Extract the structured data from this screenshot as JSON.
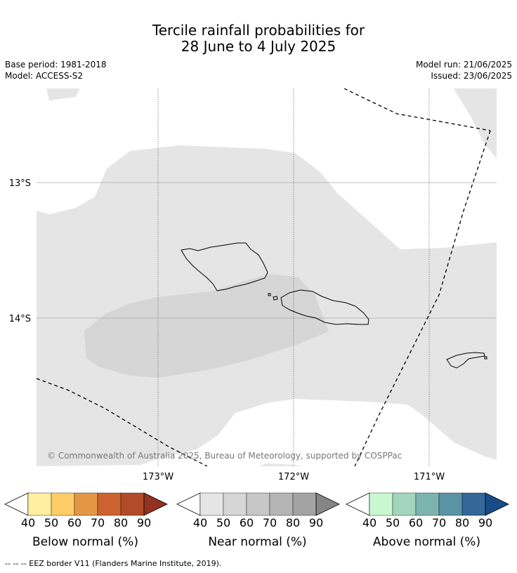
{
  "title_line1": "Tercile rainfall probabilities for",
  "title_line2": "28 June to 4 July 2025",
  "base_period": "Base period: 1981-2018",
  "model": "Model: ACCESS-S2",
  "model_run": "Model run: 21/06/2025",
  "issued": "Issued: 23/06/2025",
  "map": {
    "lat_labels": [
      "13°S",
      "14°S"
    ],
    "lon_labels": [
      "173°W",
      "172°W",
      "171°W"
    ],
    "copyright": "© Commonwealth of Australia 2025, Bureau of Meteorology, supported by COSPPac"
  },
  "colorbars": [
    {
      "name": "below",
      "label": "Below normal (%)",
      "ticks": [
        "40",
        "50",
        "60",
        "70",
        "80",
        "90"
      ],
      "colors": [
        "#ffffff",
        "#fdeea0",
        "#fdcc66",
        "#e39745",
        "#cd6330",
        "#b24b27",
        "#923220"
      ]
    },
    {
      "name": "near",
      "label": "Near normal (%)",
      "ticks": [
        "40",
        "50",
        "60",
        "70",
        "80",
        "90"
      ],
      "colors": [
        "#ffffff",
        "#e5e5e5",
        "#d6d6d6",
        "#c7c7c7",
        "#b5b5b5",
        "#a3a3a3",
        "#858585"
      ]
    },
    {
      "name": "above",
      "label": "Above normal (%)",
      "ticks": [
        "40",
        "50",
        "60",
        "70",
        "80",
        "90"
      ],
      "colors": [
        "#ffffff",
        "#c9f7d0",
        "#a3d5bd",
        "#7db3af",
        "#5a93a3",
        "#336898",
        "#194c87"
      ]
    }
  ],
  "footnote": "-- -- -- EEZ border V11 (Flanders Marine Institute, 2019)."
}
